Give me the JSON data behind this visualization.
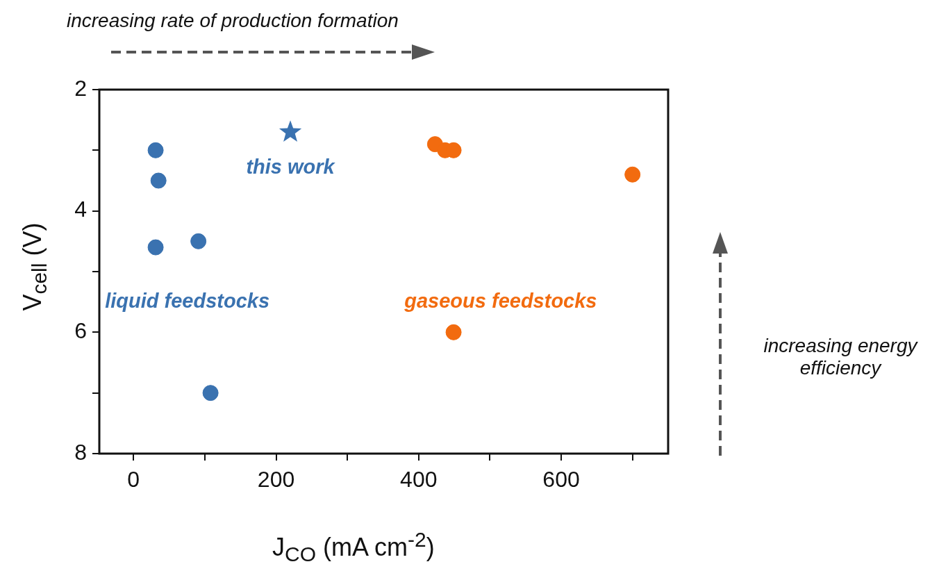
{
  "chart_data": {
    "type": "scatter",
    "xlabel": "J$_{CO}$ (mA cm$^{-2}$)",
    "ylabel": "V$_{cell}$ (V)",
    "xlim": [
      -48,
      750
    ],
    "xticks": [
      0,
      {
        "value": 100,
        "label": null
      },
      200,
      {
        "value": 300,
        "label": null
      },
      400,
      {
        "value": 500,
        "label": null
      },
      600,
      {
        "value": 700,
        "label": null
      }
    ],
    "ylim": [
      8,
      2
    ],
    "yticks": [
      2,
      {
        "value": 3,
        "label": null
      },
      4,
      {
        "value": 5,
        "label": null
      },
      6,
      {
        "value": 7,
        "label": null
      },
      8
    ],
    "grid": false,
    "legend": false,
    "series": [
      {
        "name": "liquid feedstocks",
        "color": "#3a72b0",
        "marker": "circle",
        "x": [
          31,
          35,
          31,
          91,
          108
        ],
        "values": [
          3.0,
          3.5,
          4.6,
          4.5,
          7.0
        ]
      },
      {
        "color": "#3a72b0",
        "marker": "star",
        "x": [
          220
        ],
        "values": [
          2.7
        ]
      },
      {
        "name": "gaseous feedstocks",
        "color": "#f26b0f",
        "marker": "circle",
        "x": [
          423,
          437,
          449,
          700,
          449
        ],
        "values": [
          2.9,
          3.0,
          3.0,
          3.4,
          6.0
        ]
      }
    ],
    "annotations": [
      "increasing rate of production formation",
      "increasing energy efficiency",
      {
        "text": "this work",
        "x": 220,
        "y": 2.7
      }
    ]
  }
}
